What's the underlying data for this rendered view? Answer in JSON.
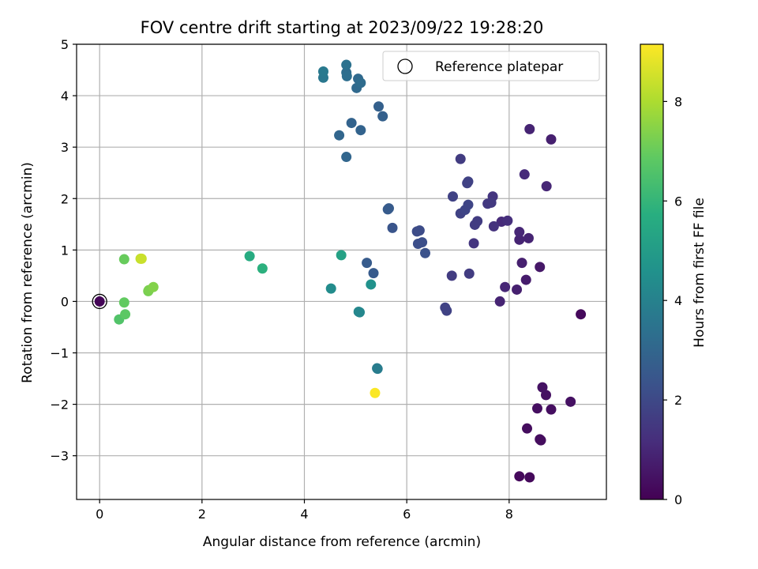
{
  "chart_data": {
    "type": "scatter",
    "title": "FOV centre drift starting at 2023/09/22 19:28:20",
    "xlabel": "Angular distance from reference (arcmin)",
    "ylabel": "Rotation from reference (arcmin)",
    "xlim": [
      -0.45,
      9.9
    ],
    "ylim": [
      -3.85,
      5.0
    ],
    "xticks": [
      "0",
      "2",
      "4",
      "6",
      "8"
    ],
    "yticks": [
      "−3",
      "−2",
      "−1",
      "0",
      "1",
      "2",
      "3",
      "4",
      "5"
    ],
    "grid": true,
    "legend": {
      "placement": "top-right",
      "entries": [
        "Reference platepar"
      ]
    },
    "reference_point": {
      "x": 0,
      "y": 0,
      "label": "Reference platepar"
    },
    "colorbar": {
      "label": "Hours from first FF file",
      "range": [
        0,
        9.15
      ],
      "ticks": [
        "0",
        "2",
        "4",
        "6",
        "8"
      ],
      "colormap": "viridis"
    },
    "points": [
      {
        "x": 0.0,
        "y": 0.0,
        "c": 0.1
      },
      {
        "x": 9.4,
        "y": -0.25,
        "c": 0.2
      },
      {
        "x": 8.2,
        "y": -3.4,
        "c": 0.2
      },
      {
        "x": 8.4,
        "y": -3.42,
        "c": 0.2
      },
      {
        "x": 8.6,
        "y": -2.68,
        "c": 0.3
      },
      {
        "x": 8.62,
        "y": -2.7,
        "c": 0.3
      },
      {
        "x": 8.35,
        "y": -2.47,
        "c": 0.3
      },
      {
        "x": 8.55,
        "y": -2.08,
        "c": 0.35
      },
      {
        "x": 8.82,
        "y": -2.1,
        "c": 0.35
      },
      {
        "x": 9.2,
        "y": -1.95,
        "c": 0.4
      },
      {
        "x": 8.72,
        "y": -1.82,
        "c": 0.4
      },
      {
        "x": 8.65,
        "y": -1.67,
        "c": 0.45
      },
      {
        "x": 8.6,
        "y": 0.67,
        "c": 0.6
      },
      {
        "x": 8.33,
        "y": 0.42,
        "c": 0.7
      },
      {
        "x": 8.15,
        "y": 0.23,
        "c": 0.8
      },
      {
        "x": 7.82,
        "y": 0.0,
        "c": 0.9
      },
      {
        "x": 7.92,
        "y": 0.28,
        "c": 1.0
      },
      {
        "x": 8.25,
        "y": 0.75,
        "c": 0.8
      },
      {
        "x": 8.2,
        "y": 1.2,
        "c": 0.9
      },
      {
        "x": 8.38,
        "y": 1.23,
        "c": 0.9
      },
      {
        "x": 8.2,
        "y": 1.35,
        "c": 1.0
      },
      {
        "x": 8.4,
        "y": 3.35,
        "c": 0.9
      },
      {
        "x": 8.82,
        "y": 3.15,
        "c": 0.8
      },
      {
        "x": 8.3,
        "y": 2.47,
        "c": 1.1
      },
      {
        "x": 8.73,
        "y": 2.24,
        "c": 1.0
      },
      {
        "x": 7.85,
        "y": 1.55,
        "c": 1.1
      },
      {
        "x": 7.97,
        "y": 1.57,
        "c": 1.2
      },
      {
        "x": 7.7,
        "y": 1.46,
        "c": 1.3
      },
      {
        "x": 7.68,
        "y": 2.04,
        "c": 1.4
      },
      {
        "x": 7.58,
        "y": 1.9,
        "c": 1.5
      },
      {
        "x": 7.65,
        "y": 1.92,
        "c": 1.5
      },
      {
        "x": 7.38,
        "y": 1.56,
        "c": 1.6
      },
      {
        "x": 7.33,
        "y": 1.49,
        "c": 1.6
      },
      {
        "x": 7.31,
        "y": 1.13,
        "c": 1.4
      },
      {
        "x": 7.05,
        "y": 2.77,
        "c": 1.6
      },
      {
        "x": 7.18,
        "y": 2.3,
        "c": 1.8
      },
      {
        "x": 7.2,
        "y": 2.33,
        "c": 1.8
      },
      {
        "x": 6.9,
        "y": 2.04,
        "c": 1.8
      },
      {
        "x": 7.05,
        "y": 1.71,
        "c": 1.8
      },
      {
        "x": 7.14,
        "y": 1.78,
        "c": 1.9
      },
      {
        "x": 7.2,
        "y": 1.88,
        "c": 1.9
      },
      {
        "x": 7.22,
        "y": 0.54,
        "c": 1.6
      },
      {
        "x": 6.88,
        "y": 0.5,
        "c": 1.6
      },
      {
        "x": 6.75,
        "y": -0.12,
        "c": 1.8
      },
      {
        "x": 6.78,
        "y": -0.18,
        "c": 1.8
      },
      {
        "x": 6.25,
        "y": 1.38,
        "c": 2.1
      },
      {
        "x": 6.2,
        "y": 1.36,
        "c": 2.1
      },
      {
        "x": 6.22,
        "y": 1.12,
        "c": 2.2
      },
      {
        "x": 6.3,
        "y": 1.15,
        "c": 2.2
      },
      {
        "x": 6.36,
        "y": 0.94,
        "c": 2.3
      },
      {
        "x": 5.72,
        "y": 1.43,
        "c": 2.4
      },
      {
        "x": 5.63,
        "y": 1.79,
        "c": 2.6
      },
      {
        "x": 5.65,
        "y": 1.81,
        "c": 2.6
      },
      {
        "x": 5.22,
        "y": 0.75,
        "c": 2.6
      },
      {
        "x": 5.35,
        "y": 0.55,
        "c": 2.6
      },
      {
        "x": 5.45,
        "y": 3.79,
        "c": 2.8
      },
      {
        "x": 5.53,
        "y": 3.6,
        "c": 2.8
      },
      {
        "x": 4.92,
        "y": 3.47,
        "c": 2.9
      },
      {
        "x": 5.1,
        "y": 3.33,
        "c": 2.9
      },
      {
        "x": 4.68,
        "y": 3.23,
        "c": 3.0
      },
      {
        "x": 4.82,
        "y": 2.81,
        "c": 3.0
      },
      {
        "x": 5.05,
        "y": 4.33,
        "c": 3.1
      },
      {
        "x": 5.02,
        "y": 4.15,
        "c": 3.1
      },
      {
        "x": 5.1,
        "y": 4.25,
        "c": 3.2
      },
      {
        "x": 4.82,
        "y": 4.45,
        "c": 3.2
      },
      {
        "x": 4.83,
        "y": 4.38,
        "c": 3.3
      },
      {
        "x": 4.82,
        "y": 4.6,
        "c": 3.4
      },
      {
        "x": 4.37,
        "y": 4.35,
        "c": 3.6
      },
      {
        "x": 4.37,
        "y": 4.47,
        "c": 3.7
      },
      {
        "x": 5.42,
        "y": -1.3,
        "c": 3.8
      },
      {
        "x": 5.43,
        "y": -1.31,
        "c": 3.8
      },
      {
        "x": 5.08,
        "y": -0.21,
        "c": 4.2
      },
      {
        "x": 5.06,
        "y": -0.2,
        "c": 4.2
      },
      {
        "x": 4.52,
        "y": 0.25,
        "c": 4.4
      },
      {
        "x": 5.3,
        "y": 0.33,
        "c": 4.6
      },
      {
        "x": 4.72,
        "y": 0.9,
        "c": 5.2
      },
      {
        "x": 2.93,
        "y": 0.88,
        "c": 5.6
      },
      {
        "x": 3.18,
        "y": 0.64,
        "c": 5.8
      },
      {
        "x": 0.38,
        "y": -0.35,
        "c": 6.6
      },
      {
        "x": 0.5,
        "y": -0.25,
        "c": 6.8
      },
      {
        "x": 0.48,
        "y": -0.02,
        "c": 6.9
      },
      {
        "x": 0.48,
        "y": 0.82,
        "c": 7.0
      },
      {
        "x": 0.95,
        "y": 0.2,
        "c": 7.2
      },
      {
        "x": 0.96,
        "y": 0.22,
        "c": 7.3
      },
      {
        "x": 1.05,
        "y": 0.28,
        "c": 7.4
      },
      {
        "x": 0.8,
        "y": 0.83,
        "c": 8.3
      },
      {
        "x": 0.82,
        "y": 0.83,
        "c": 8.4
      },
      {
        "x": 5.38,
        "y": -1.78,
        "c": 9.1
      }
    ]
  }
}
